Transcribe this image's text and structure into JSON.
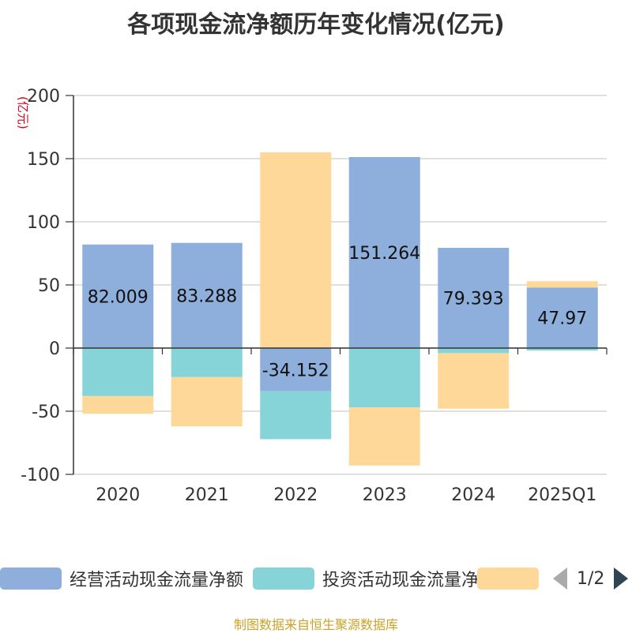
{
  "title": "各项现金流净额历年变化情况(亿元)",
  "unit_label": "(亿元)",
  "footer": "制图数据来自恒生聚源数据库",
  "legend": {
    "items": [
      {
        "label": "经营活动现金流量净额",
        "color": "#8eaedb"
      },
      {
        "label": "投资活动现金流量净额",
        "color": "#86d4d8"
      },
      {
        "label": "",
        "color": "#fdd898"
      }
    ],
    "page": "1/2"
  },
  "chart_data": {
    "type": "bar",
    "stacked": true,
    "categories": [
      "2020",
      "2021",
      "2022",
      "2023",
      "2024",
      "2025Q1"
    ],
    "ylim": [
      -100,
      200
    ],
    "yticks": [
      -100,
      -50,
      0,
      50,
      100,
      150,
      200
    ],
    "grid": true,
    "legend_position": "bottom",
    "series": [
      {
        "name": "经营活动现金流量净额",
        "color": "#8eaedb",
        "values": [
          82.009,
          83.288,
          -34.152,
          151.264,
          79.393,
          47.97
        ],
        "labels": [
          "82.009",
          "83.288",
          "-34.152",
          "151.264",
          "79.393",
          "47.97"
        ]
      },
      {
        "name": "投资活动现金流量净额",
        "color": "#86d4d8",
        "values": [
          -38,
          -23,
          -38,
          -47,
          -4,
          -2
        ]
      },
      {
        "color": "#fdd898",
        "values": [
          -14,
          -39,
          155,
          -46,
          -44,
          5
        ]
      }
    ]
  }
}
